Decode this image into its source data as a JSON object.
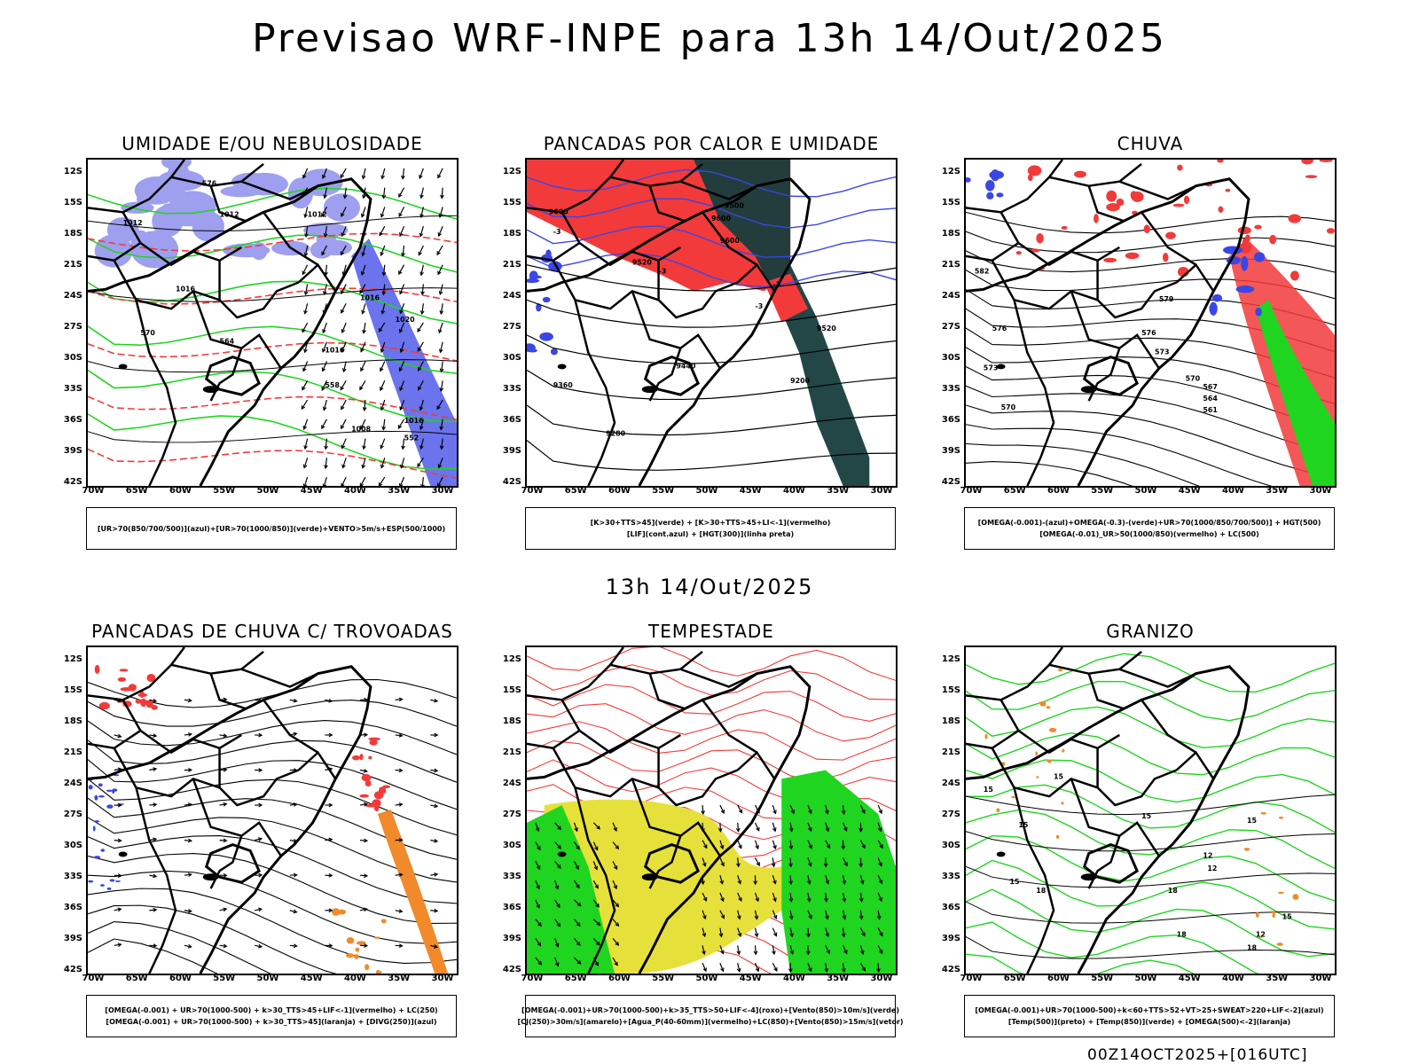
{
  "title": "Previsao WRF-INPE  para 13h 14/Out/2025",
  "subtitle": "13h 14/Out/2025",
  "footer": "00Z14OCT2025+[016UTC]",
  "lat_labels": [
    "12S",
    "15S",
    "18S",
    "21S",
    "24S",
    "27S",
    "30S",
    "33S",
    "36S",
    "39S",
    "42S"
  ],
  "lon_labels": [
    "70W",
    "65W",
    "60W",
    "55W",
    "50W",
    "45W",
    "40W",
    "35W",
    "30W"
  ],
  "colors": {
    "blue_shade": "#9f9fef",
    "blue_strong": "#3a46e6",
    "red": "#f23a3a",
    "green": "#1fd51f",
    "dark_teal": "#173d3d",
    "yellow": "#e6e03a",
    "orange": "#f08a2a"
  },
  "panels": [
    {
      "title": "UMIDADE E/OU NEBULOSIDADE",
      "legend": [
        "[UR>70(850/700/500)](azul)+[UR>70(1000/850)](verde)+VENTO>5m/s+ESP(500/1000)"
      ],
      "contour_labels": [
        "1012",
        "1016",
        "1012",
        "1012",
        "1016",
        "1020",
        "1016",
        "1008",
        "1016",
        "576",
        "570",
        "564",
        "558",
        "552"
      ]
    },
    {
      "title": "PANCADAS POR CALOR E UMIDADE",
      "legend": [
        "[K>30+TTS>45](verde)  +  [K>30+TTS>45+LI<-1](vermelho)",
        "[LIF](cont.azul)  +  [HGT(300)](linha preta)"
      ],
      "contour_labels": [
        "9600",
        "9500",
        "9600",
        "9600",
        "9520",
        "9440",
        "9360",
        "9280",
        "9200",
        "9520",
        "-3",
        "-3",
        "-3",
        "-3"
      ]
    },
    {
      "title": "CHUVA",
      "legend": [
        "[OMEGA(-0.001)-(azul)+OMEGA(-0.3)-(verde)+UR>70(1000/850/700/500)]  +  HGT(500)",
        "[OMEGA(-0.01)_UR>50(1000/850)(vermelho)  +  LC(500)"
      ],
      "contour_labels": [
        "582",
        "579",
        "576",
        "573",
        "570",
        "567",
        "564",
        "561",
        "570",
        "573",
        "576"
      ]
    },
    {
      "title": "PANCADAS DE CHUVA C/ TROVOADAS",
      "legend": [
        "[OMEGA(-0.001)  +  UR>70(1000-500)  +  k>30_TTS>45+LIF<-1](vermelho)  +  LC(250)",
        "[OMEGA(-0.001)  +  UR>70(1000-500)  +  k>30_TTS>45](laranja)  +  [DIVG(250)](azul)"
      ],
      "contour_labels": []
    },
    {
      "title": "TEMPESTADE",
      "legend": [
        "[OMEGA(-0.001)+UR>70(1000-500)+k>35_TTS>50+LIF<-4](roxo)+[Vento(850)>10m/s](verde)",
        "[CJ(250)>30m/s](amarelo)+[Agua_P(40-60mm)](vermelho)+LC(850)+[Vento(850)>15m/s](vetor)"
      ],
      "contour_labels": []
    },
    {
      "title": "GRANIZO",
      "legend": [
        "[OMEGA(-0.001)+UR>70(1000-500)+k<60+TTS>52+VT>25+SWEAT>220+LIF<-2](azul)",
        "[Temp(500)](preto)  +  [Temp(850)](verde)  +  [OMEGA(500)<-2](laranja)"
      ],
      "contour_labels": [
        "15",
        "15",
        "15",
        "15",
        "12",
        "15",
        "18",
        "18",
        "12",
        "15",
        "18",
        "18",
        "12",
        "15"
      ]
    }
  ]
}
